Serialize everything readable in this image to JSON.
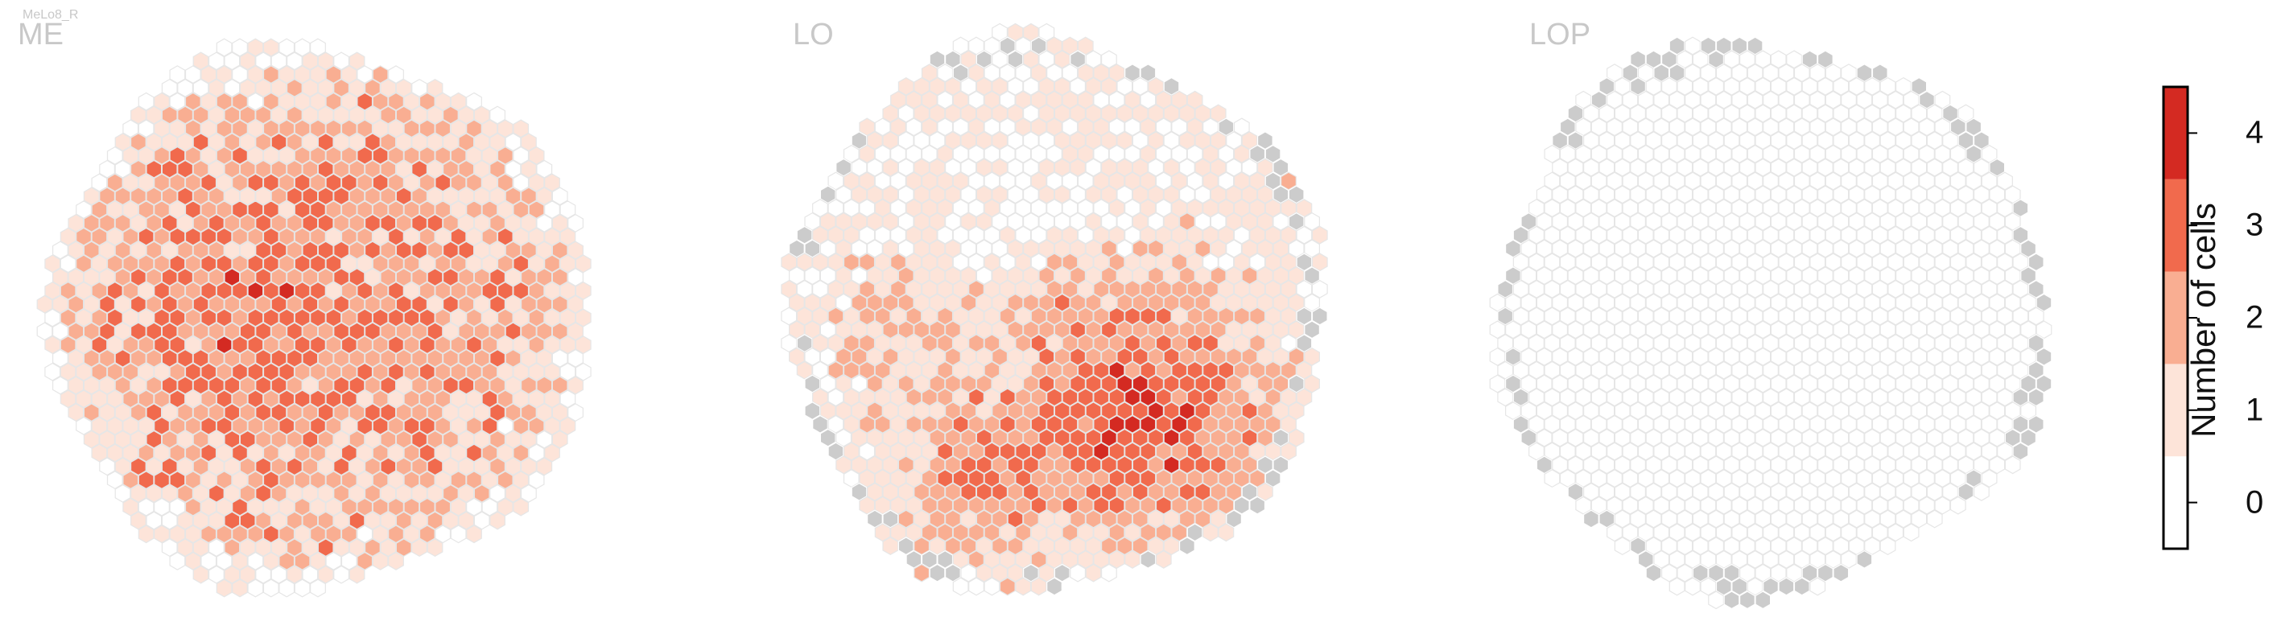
{
  "figure_label": "MeLo8_R",
  "chart_data": {
    "type": "heatmap",
    "panels": [
      {
        "name": "ME"
      },
      {
        "name": "LO"
      },
      {
        "name": "LOP"
      }
    ],
    "colorbar": {
      "label": "Number of cells",
      "ticks": [
        "0",
        "1",
        "2",
        "3",
        "4"
      ],
      "levels": [
        0,
        1,
        2,
        3,
        4
      ],
      "colors": [
        "#ffffff",
        "#fde4d9",
        "#f9ae92",
        "#f16a4d",
        "#d42a22"
      ]
    },
    "empty_color": "#cccccc",
    "grid_stroke": "#e6e6e6",
    "note": "hexagonal columns colored by number of cells"
  }
}
